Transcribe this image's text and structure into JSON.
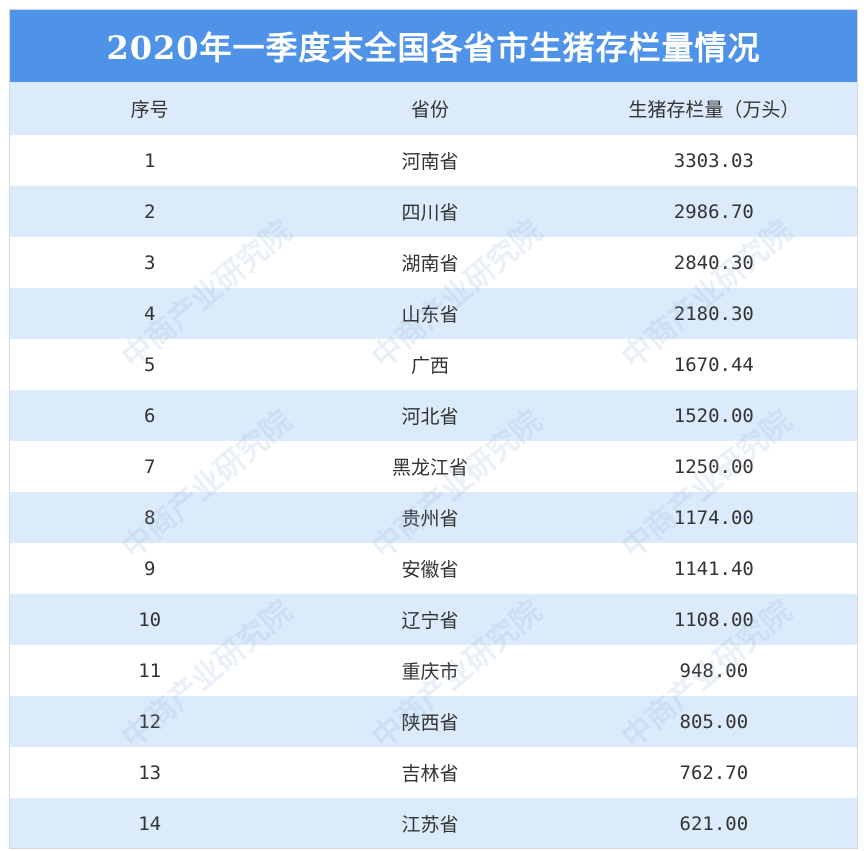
{
  "title": "2020年一季度末全国各省市生猪存栏量情况",
  "headers": [
    "序号",
    "省份",
    "生猪存栏量（万头）"
  ],
  "rows": [
    {
      "index": "1",
      "province": "河南省",
      "value": "3303.03"
    },
    {
      "index": "2",
      "province": "四川省",
      "value": "2986.70"
    },
    {
      "index": "3",
      "province": "湖南省",
      "value": "2840.30"
    },
    {
      "index": "4",
      "province": "山东省",
      "value": "2180.30"
    },
    {
      "index": "5",
      "province": "广西",
      "value": "1670.44"
    },
    {
      "index": "6",
      "province": "河北省",
      "value": "1520.00"
    },
    {
      "index": "7",
      "province": "黑龙江省",
      "value": "1250.00"
    },
    {
      "index": "8",
      "province": "贵州省",
      "value": "1174.00"
    },
    {
      "index": "9",
      "province": "安徽省",
      "value": "1141.40"
    },
    {
      "index": "10",
      "province": "辽宁省",
      "value": "1108.00"
    },
    {
      "index": "11",
      "province": "重庆市",
      "value": "948.00"
    },
    {
      "index": "12",
      "province": "陕西省",
      "value": "805.00"
    },
    {
      "index": "13",
      "province": "吉林省",
      "value": "762.70"
    },
    {
      "index": "14",
      "province": "江苏省",
      "value": "621.00"
    }
  ],
  "watermark": "中商产业研究院",
  "colors": {
    "title_bg": "#4f93e8",
    "stripe": "#dcebfb"
  }
}
